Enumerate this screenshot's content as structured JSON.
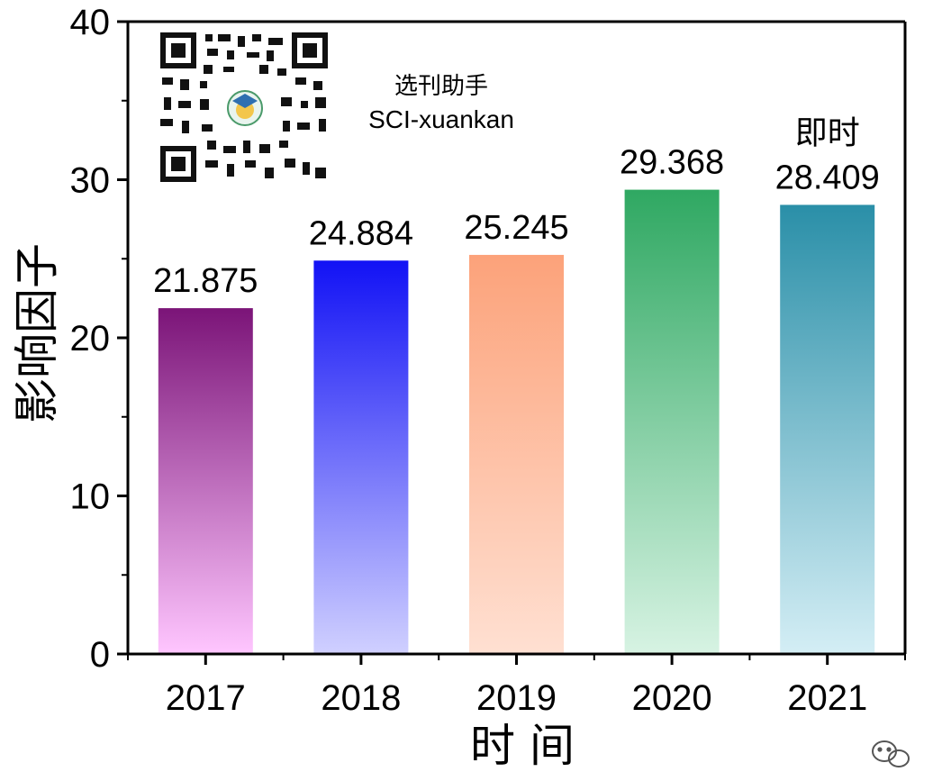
{
  "chart_data": {
    "type": "bar",
    "categories": [
      "2017",
      "2018",
      "2019",
      "2020",
      "2021"
    ],
    "values": [
      21.875,
      24.884,
      25.245,
      29.368,
      28.409
    ],
    "value_labels": [
      "21.875",
      "24.884",
      "25.245",
      "29.368",
      "28.409"
    ],
    "xlabel": "时 间",
    "ylabel": "影响因子",
    "ylim": [
      0,
      40
    ],
    "yticks": [
      0,
      10,
      20,
      30,
      40
    ],
    "grid": false,
    "annotations": [
      {
        "category": "2021",
        "text": "即时"
      }
    ],
    "colors": [
      {
        "top": "#7b1478",
        "bottom": "#ffc6ff"
      },
      {
        "top": "#1212f5",
        "bottom": "#d0d0ff"
      },
      {
        "top": "#fca27a",
        "bottom": "#ffe0d2"
      },
      {
        "top": "#2fa862",
        "bottom": "#d7f3e3"
      },
      {
        "top": "#2a8fa8",
        "bottom": "#d4eef5"
      }
    ]
  },
  "watermark": {
    "qr_icon": "qr-code-icon",
    "title": "选刊助手",
    "account": "SCI-xuankan",
    "corner_icon": "wechat-icon"
  }
}
